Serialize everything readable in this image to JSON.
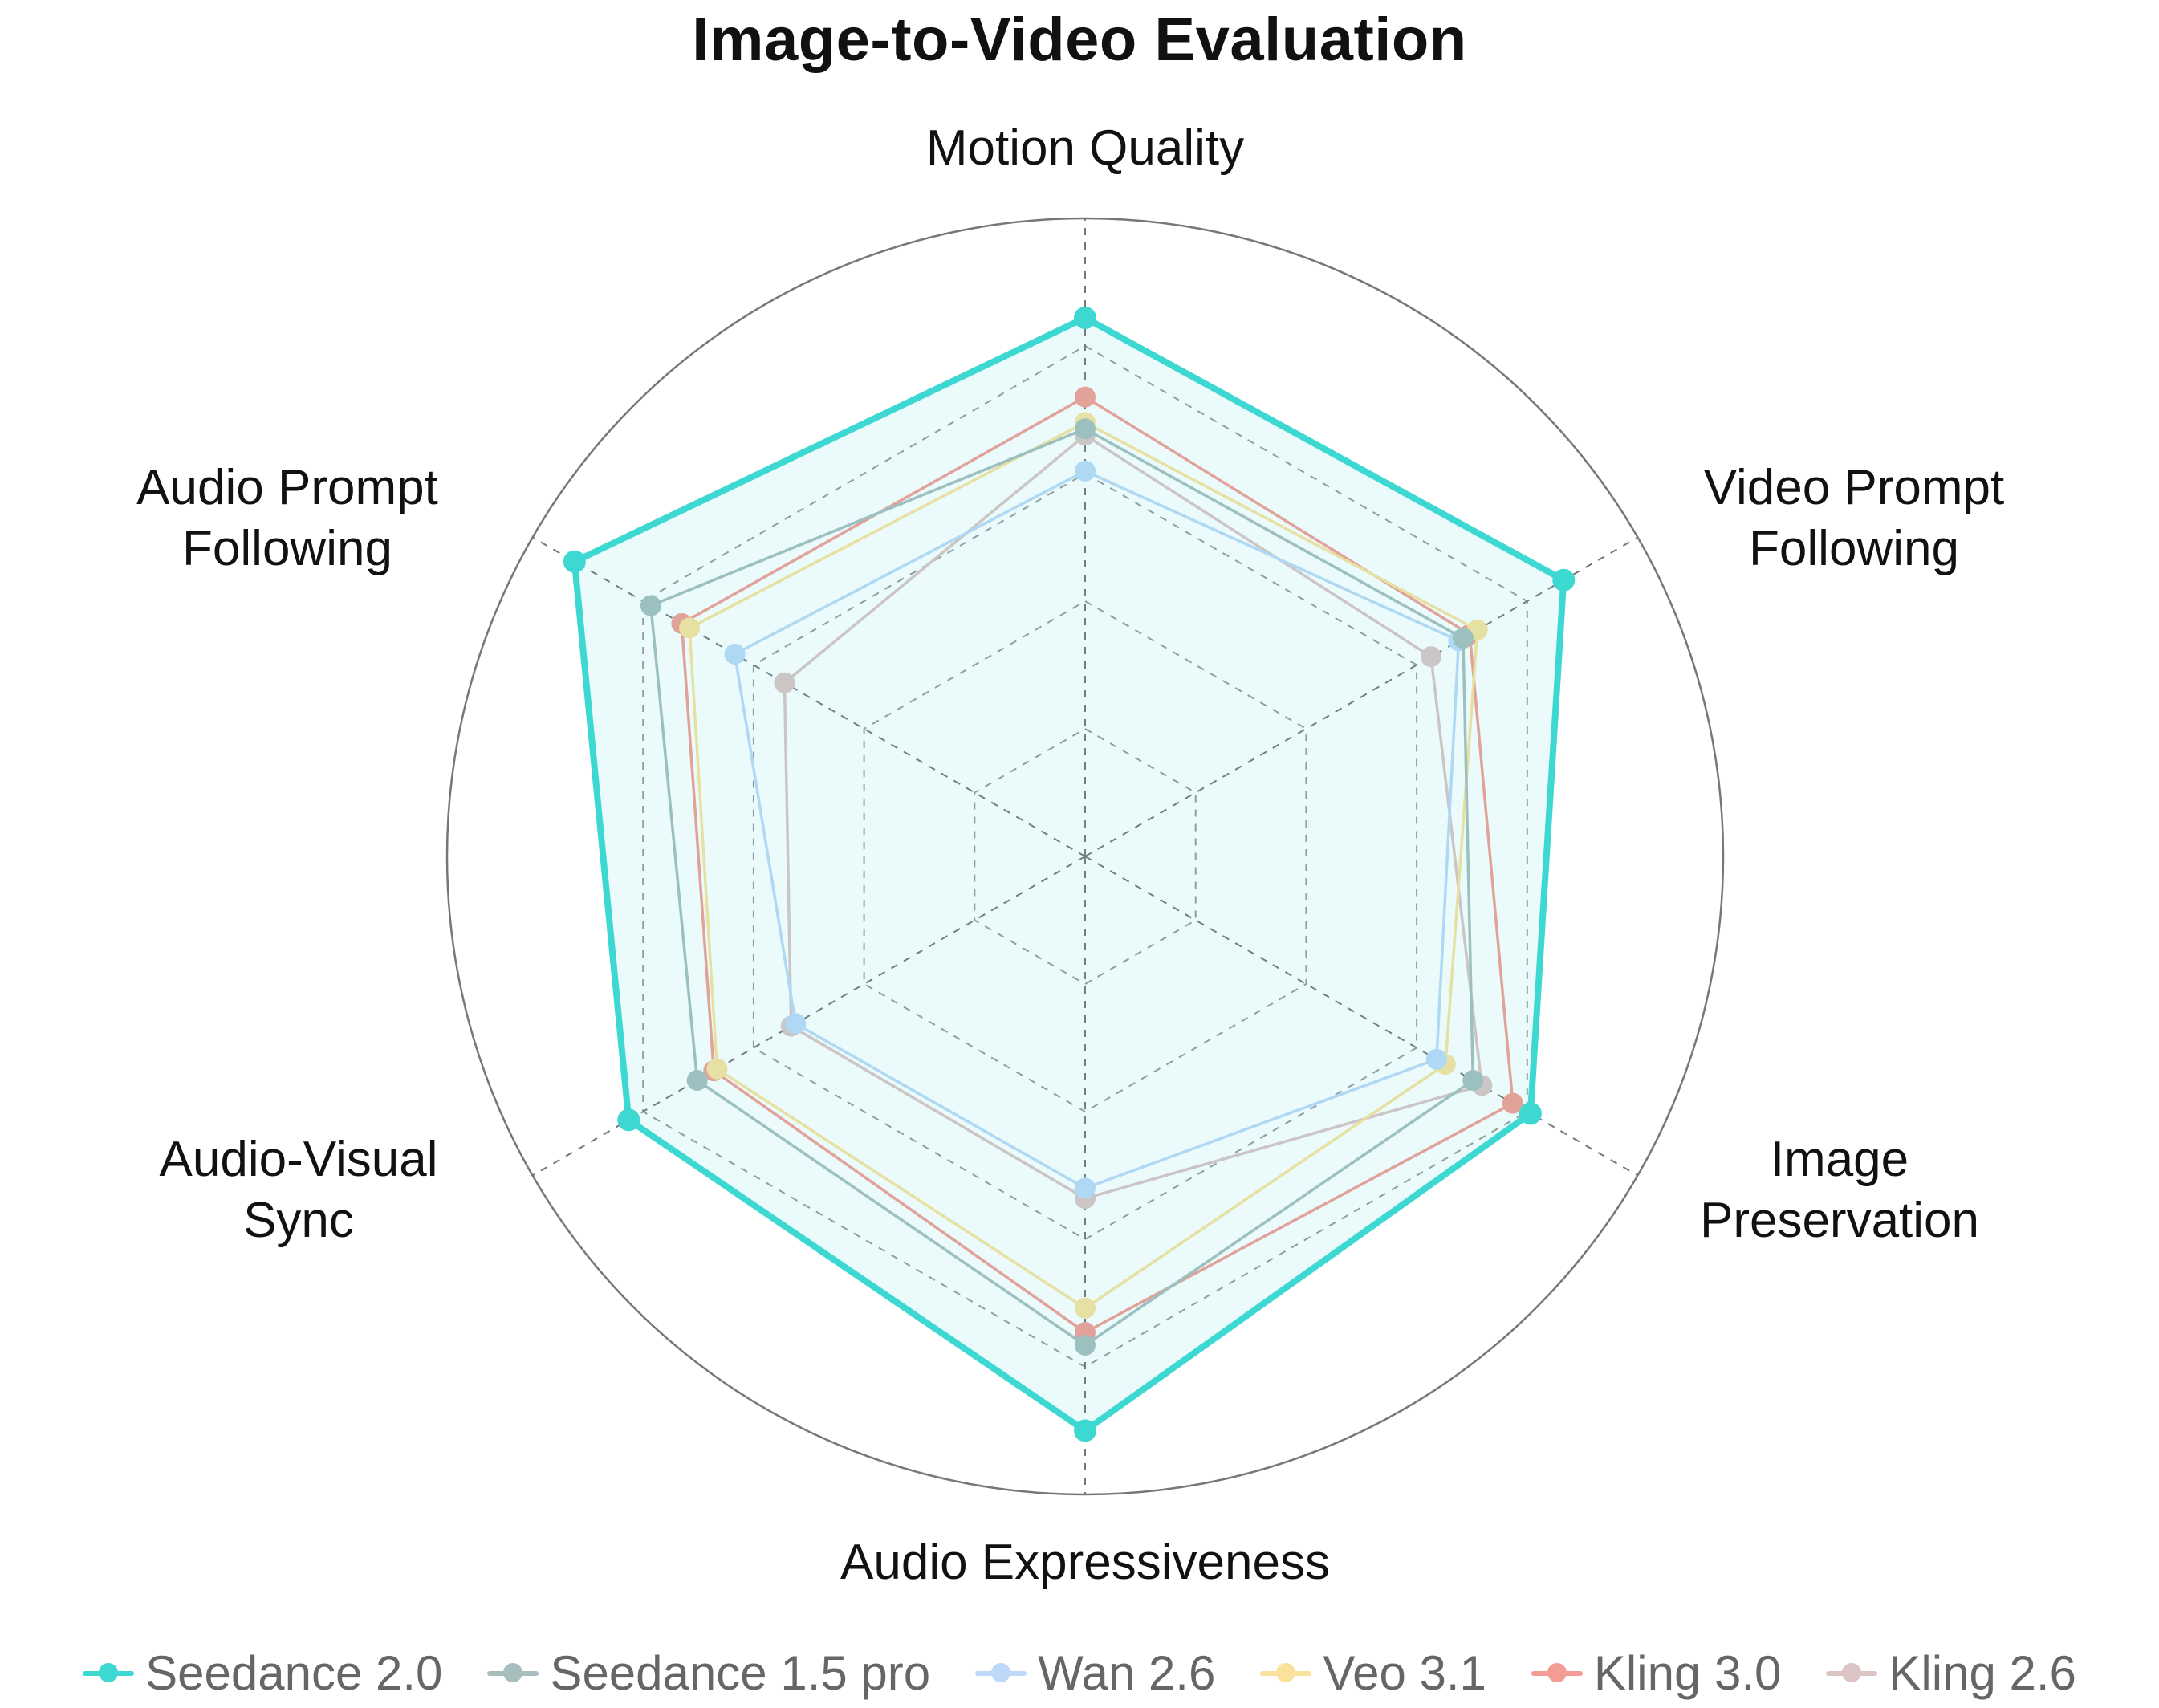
{
  "chart_data": {
    "type": "radar",
    "title": "Image-to-Video Evaluation",
    "axes": [
      [
        "Motion Quality"
      ],
      [
        "Video Prompt",
        "Following"
      ],
      [
        "Image",
        "Preservation"
      ],
      [
        "Audio Expressiveness"
      ],
      [
        "Audio-Visual",
        "Sync"
      ],
      [
        "Audio Prompt",
        "Following"
      ]
    ],
    "rlim": [
      0,
      5
    ],
    "grid": true,
    "legend_position": "bottom",
    "series": [
      {
        "name": "Seedance 2.0",
        "color": "#3ED8D3",
        "values": [
          4.22,
          4.33,
          4.03,
          4.5,
          4.13,
          4.62
        ],
        "fill": true
      },
      {
        "name": "Seedance 1.5 pro",
        "color": "#A8BEBE",
        "values": [
          3.35,
          3.42,
          3.51,
          3.83,
          3.51,
          3.93
        ]
      },
      {
        "name": "Wan 2.6",
        "color": "#BDD8F8",
        "values": [
          3.02,
          3.38,
          3.18,
          2.6,
          2.62,
          3.17
        ]
      },
      {
        "name": "Veo 3.1",
        "color": "#FAE29C",
        "values": [
          3.4,
          3.55,
          3.26,
          3.54,
          3.33,
          3.58
        ]
      },
      {
        "name": "Kling 3.0",
        "color": "#F49C94",
        "values": [
          3.6,
          3.48,
          3.87,
          3.73,
          3.36,
          3.65
        ]
      },
      {
        "name": "Kling 2.6",
        "color": "#DCC3C4",
        "values": [
          3.3,
          3.13,
          3.59,
          2.68,
          2.66,
          2.72
        ]
      }
    ]
  }
}
